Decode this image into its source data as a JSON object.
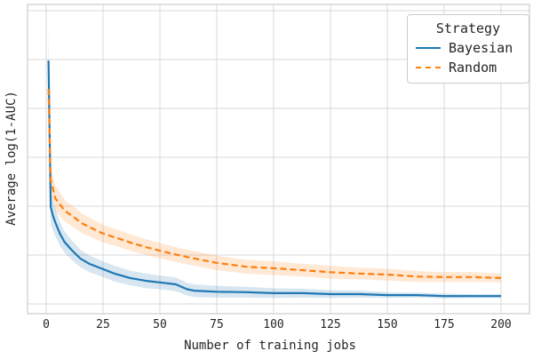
{
  "figure": {
    "background": "#ffffff",
    "text_color": "#262626",
    "grid_color": "#d9d9d9",
    "spine_color": "#cccccc"
  },
  "chart_data": {
    "type": "line",
    "title": "",
    "xlabel": "Number of training jobs",
    "ylabel": "Average log(1-AUC)",
    "x_ticks": [
      0,
      25,
      50,
      75,
      100,
      125,
      150,
      175,
      200
    ],
    "x_tick_labels": [
      "0",
      "25",
      "50",
      "75",
      "100",
      "125",
      "150",
      "175",
      "200"
    ],
    "y_tick_labels": [],
    "y_axis_note": "y-axis gridlines are unlabeled; y values below are in gridline units (bottom gridline = 0, one gridline spacing = 1)",
    "xlim": [
      -9,
      212
    ],
    "ylim": [
      -0.2,
      6.13
    ],
    "y_gridlines": [
      0,
      1,
      2,
      3,
      4,
      5,
      6
    ],
    "grid": true,
    "legend": {
      "title": "Strategy",
      "position": "upper right"
    },
    "series": [
      {
        "name": "Bayesian",
        "color": "#1f77b4",
        "linestyle": "solid",
        "linewidth": 2.2,
        "band_opacity": 0.18,
        "x": [
          1,
          2,
          3,
          4,
          6,
          8,
          11,
          15,
          19,
          25,
          30,
          37,
          44,
          50,
          57,
          62,
          65,
          75,
          88,
          100,
          113,
          125,
          138,
          150,
          163,
          175,
          188,
          200
        ],
        "y": [
          4.98,
          1.98,
          1.8,
          1.67,
          1.44,
          1.27,
          1.11,
          0.93,
          0.82,
          0.71,
          0.62,
          0.53,
          0.47,
          0.44,
          0.4,
          0.3,
          0.27,
          0.25,
          0.24,
          0.22,
          0.22,
          0.2,
          0.2,
          0.18,
          0.18,
          0.16,
          0.16,
          0.16
        ],
        "band": [
          0.7,
          0.35,
          0.3,
          0.28,
          0.25,
          0.22,
          0.2,
          0.18,
          0.17,
          0.16,
          0.16,
          0.15,
          0.15,
          0.14,
          0.14,
          0.13,
          0.13,
          0.12,
          0.11,
          0.1,
          0.09,
          0.08,
          0.07,
          0.06,
          0.05,
          0.05,
          0.04,
          0.04
        ]
      },
      {
        "name": "Random",
        "color": "#ff7f0e",
        "linestyle": "dashed",
        "linewidth": 2.2,
        "band_opacity": 0.18,
        "x": [
          1,
          2,
          3,
          4,
          6,
          8,
          12,
          16,
          20,
          25,
          31,
          38,
          44,
          50,
          56,
          63,
          75,
          88,
          100,
          113,
          125,
          138,
          150,
          163,
          175,
          188,
          200
        ],
        "y": [
          4.4,
          2.53,
          2.35,
          2.16,
          2.04,
          1.91,
          1.78,
          1.64,
          1.55,
          1.44,
          1.35,
          1.24,
          1.16,
          1.09,
          1.02,
          0.95,
          0.84,
          0.76,
          0.73,
          0.69,
          0.65,
          0.62,
          0.6,
          0.56,
          0.55,
          0.55,
          0.53
        ],
        "band": [
          0.45,
          0.3,
          0.28,
          0.26,
          0.24,
          0.22,
          0.21,
          0.2,
          0.19,
          0.18,
          0.17,
          0.17,
          0.16,
          0.16,
          0.15,
          0.15,
          0.15,
          0.14,
          0.14,
          0.13,
          0.13,
          0.12,
          0.12,
          0.11,
          0.1,
          0.1,
          0.09
        ]
      }
    ]
  }
}
